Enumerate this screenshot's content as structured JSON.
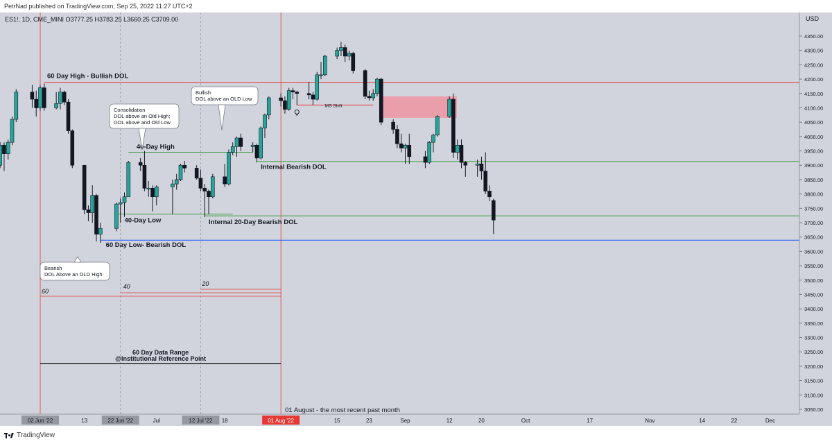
{
  "header": {
    "published": "PetrNad published on TradingView.com, Sep 25, 2022 11:27 UTC+2"
  },
  "footer": {
    "brand": "TradingView"
  },
  "chart_data": {
    "type": "candlestick",
    "symbol_line": "ES1!, 1D, CME_MINI  O3777.25  H3783.25  L3660.25  C3709.00",
    "currency": "USD",
    "ylim": [
      3020,
      4380
    ],
    "y_ticks": [
      3050,
      3100,
      3150,
      3200,
      3250,
      3300,
      3350,
      3400,
      3450,
      3500,
      3550,
      3600,
      3650,
      3700,
      3750,
      3800,
      3850,
      3900,
      3950,
      4000,
      4050,
      4100,
      4150,
      4200,
      4250,
      4300,
      4350
    ],
    "x_ticks": [
      {
        "label": "02 Jun '22",
        "date": "2022-06-02",
        "highlight": "grey"
      },
      {
        "label": "13",
        "date": "2022-06-13"
      },
      {
        "label": "22 Jun '22",
        "date": "2022-06-22",
        "highlight": "grey"
      },
      {
        "label": "Jul",
        "date": "2022-07-01"
      },
      {
        "label": "12 Jul '22",
        "date": "2022-07-12",
        "highlight": "grey"
      },
      {
        "label": "18",
        "date": "2022-07-18"
      },
      {
        "label": "01 Aug '22",
        "date": "2022-08-01",
        "highlight": "red"
      },
      {
        "label": "15",
        "date": "2022-08-15"
      },
      {
        "label": "23",
        "date": "2022-08-23"
      },
      {
        "label": "Sep",
        "date": "2022-09-01"
      },
      {
        "label": "12",
        "date": "2022-09-12"
      },
      {
        "label": "20",
        "date": "2022-09-20"
      },
      {
        "label": "Oct",
        "date": "2022-10-01"
      },
      {
        "label": "17",
        "date": "2022-10-17"
      },
      {
        "label": "Nov",
        "date": "2022-11-01"
      },
      {
        "label": "14",
        "date": "2022-11-14"
      },
      {
        "label": "22",
        "date": "2022-11-22"
      },
      {
        "label": "Dec",
        "date": "2022-12-01"
      }
    ],
    "candles": [
      [
        "2022-05-12",
        3930,
        3950,
        3860,
        3905
      ],
      [
        "2022-05-13",
        3905,
        4030,
        3900,
        4020
      ],
      [
        "2022-05-16",
        4020,
        4050,
        3995,
        4005
      ],
      [
        "2022-05-17",
        4005,
        4100,
        4000,
        4090
      ],
      [
        "2022-05-18",
        4090,
        4100,
        3920,
        3925
      ],
      [
        "2022-05-19",
        3925,
        3960,
        3860,
        3900
      ],
      [
        "2022-05-20",
        3900,
        3945,
        3810,
        3900
      ],
      [
        "2022-05-23",
        3900,
        3980,
        3890,
        3970
      ],
      [
        "2022-05-24",
        3970,
        3980,
        3880,
        3940
      ],
      [
        "2022-05-25",
        3940,
        3990,
        3920,
        3980
      ],
      [
        "2022-05-26",
        3980,
        4070,
        3970,
        4060
      ],
      [
        "2022-05-27",
        4060,
        4165,
        4050,
        4155
      ],
      [
        "2022-05-31",
        4155,
        4180,
        4100,
        4130
      ],
      [
        "2022-06-01",
        4130,
        4160,
        4070,
        4100
      ],
      [
        "2022-06-02",
        4100,
        4180,
        4090,
        4170
      ],
      [
        "2022-06-03",
        4170,
        4185,
        4090,
        4100
      ],
      [
        "2022-06-06",
        4100,
        4155,
        4095,
        4115
      ],
      [
        "2022-06-07",
        4115,
        4170,
        4095,
        4155
      ],
      [
        "2022-06-08",
        4155,
        4160,
        4110,
        4120
      ],
      [
        "2022-06-09",
        4120,
        4130,
        4010,
        4020
      ],
      [
        "2022-06-10",
        4020,
        4025,
        3890,
        3900
      ],
      [
        "2022-06-13",
        3900,
        3900,
        3730,
        3745
      ],
      [
        "2022-06-14",
        3745,
        3760,
        3705,
        3735
      ],
      [
        "2022-06-15",
        3735,
        3830,
        3700,
        3795
      ],
      [
        "2022-06-16",
        3795,
        3800,
        3635,
        3660
      ],
      [
        "2022-06-17",
        3660,
        3700,
        3630,
        3680
      ],
      [
        "2022-06-21",
        3680,
        3770,
        3670,
        3765
      ],
      [
        "2022-06-22",
        3765,
        3785,
        3700,
        3770
      ],
      [
        "2022-06-23",
        3770,
        3805,
        3720,
        3790
      ],
      [
        "2022-06-24",
        3790,
        3915,
        3790,
        3910
      ],
      [
        "2022-06-27",
        3910,
        3925,
        3880,
        3900
      ],
      [
        "2022-06-28",
        3900,
        3950,
        3810,
        3820
      ],
      [
        "2022-06-29",
        3820,
        3845,
        3790,
        3820
      ],
      [
        "2022-06-30",
        3820,
        3830,
        3740,
        3790
      ],
      [
        "2022-07-01",
        3790,
        3830,
        3760,
        3825
      ],
      [
        "2022-07-05",
        3825,
        3850,
        3730,
        3835
      ],
      [
        "2022-07-06",
        3835,
        3870,
        3815,
        3850
      ],
      [
        "2022-07-07",
        3850,
        3905,
        3845,
        3900
      ],
      [
        "2022-07-08",
        3900,
        3915,
        3875,
        3890
      ],
      [
        "2022-07-11",
        3890,
        3900,
        3850,
        3855
      ],
      [
        "2022-07-12",
        3855,
        3885,
        3810,
        3820
      ],
      [
        "2022-07-13",
        3820,
        3835,
        3720,
        3810
      ],
      [
        "2022-07-14",
        3810,
        3815,
        3730,
        3790
      ],
      [
        "2022-07-15",
        3790,
        3870,
        3785,
        3860
      ],
      [
        "2022-07-18",
        3860,
        3905,
        3825,
        3835
      ],
      [
        "2022-07-19",
        3835,
        3955,
        3830,
        3945
      ],
      [
        "2022-07-20",
        3945,
        3980,
        3935,
        3965
      ],
      [
        "2022-07-21",
        3965,
        4000,
        3930,
        3995
      ],
      [
        "2022-07-22",
        3995,
        4010,
        3950,
        3965
      ],
      [
        "2022-07-25",
        3965,
        3980,
        3945,
        3970
      ],
      [
        "2022-07-26",
        3970,
        3975,
        3910,
        3925
      ],
      [
        "2022-07-27",
        3925,
        4035,
        3920,
        4030
      ],
      [
        "2022-07-28",
        4030,
        4080,
        3995,
        4075
      ],
      [
        "2022-07-29",
        4075,
        4140,
        4060,
        4135
      ],
      [
        "2022-08-01",
        4135,
        4150,
        4105,
        4125
      ],
      [
        "2022-08-02",
        4125,
        4140,
        4080,
        4095
      ],
      [
        "2022-08-03",
        4095,
        4170,
        4090,
        4160
      ],
      [
        "2022-08-04",
        4160,
        4170,
        4130,
        4155
      ],
      [
        "2022-08-05",
        4155,
        4160,
        4110,
        4150
      ],
      [
        "2022-08-08",
        4150,
        4190,
        4130,
        4145
      ],
      [
        "2022-08-09",
        4145,
        4155,
        4110,
        4130
      ],
      [
        "2022-08-10",
        4130,
        4225,
        4125,
        4215
      ],
      [
        "2022-08-11",
        4215,
        4260,
        4200,
        4215
      ],
      [
        "2022-08-12",
        4215,
        4285,
        4210,
        4280
      ],
      [
        "2022-08-15",
        4280,
        4310,
        4270,
        4300
      ],
      [
        "2022-08-16",
        4300,
        4330,
        4280,
        4310
      ],
      [
        "2022-08-17",
        4310,
        4320,
        4260,
        4280
      ],
      [
        "2022-08-18",
        4280,
        4300,
        4265,
        4290
      ],
      [
        "2022-08-19",
        4290,
        4295,
        4220,
        4230
      ],
      [
        "2022-08-22",
        4230,
        4235,
        4130,
        4140
      ],
      [
        "2022-08-23",
        4140,
        4160,
        4125,
        4135
      ],
      [
        "2022-08-24",
        4135,
        4165,
        4125,
        4150
      ],
      [
        "2022-08-25",
        4150,
        4205,
        4140,
        4200
      ],
      [
        "2022-08-26",
        4200,
        4205,
        4040,
        4050
      ],
      [
        "2022-08-29",
        4050,
        4060,
        4010,
        4025
      ],
      [
        "2022-08-30",
        4025,
        4040,
        3960,
        3975
      ],
      [
        "2022-08-31",
        3975,
        4010,
        3945,
        3960
      ],
      [
        "2022-09-01",
        3960,
        3975,
        3905,
        3970
      ],
      [
        "2022-09-02",
        3970,
        4010,
        3905,
        3930
      ],
      [
        "2022-09-06",
        3930,
        3950,
        3890,
        3910
      ],
      [
        "2022-09-07",
        3910,
        3985,
        3905,
        3980
      ],
      [
        "2022-09-08",
        3980,
        4010,
        3945,
        4005
      ],
      [
        "2022-09-09",
        4005,
        4075,
        4000,
        4070
      ],
      [
        "2022-09-12",
        4070,
        4140,
        4065,
        4130
      ],
      [
        "2022-09-13",
        4130,
        4150,
        3925,
        3945
      ],
      [
        "2022-09-14",
        3945,
        3990,
        3920,
        3970
      ],
      [
        "2022-09-15",
        3970,
        3990,
        3890,
        3910
      ],
      [
        "2022-09-16",
        3910,
        3915,
        3860,
        3900
      ],
      [
        "2022-09-19",
        3900,
        3920,
        3860,
        3905
      ],
      [
        "2022-09-20",
        3905,
        3930,
        3850,
        3880
      ],
      [
        "2022-09-21",
        3880,
        3945,
        3800,
        3810
      ],
      [
        "2022-09-22",
        3810,
        3830,
        3775,
        3790
      ],
      [
        "2022-09-23",
        3777.25,
        3783.25,
        3660.25,
        3709
      ]
    ],
    "price_levels": [
      {
        "price": 4189.0,
        "color": "#e53935",
        "label": "4189.00"
      },
      {
        "price": 3913.25,
        "color": "#43a047",
        "label": "3913.25"
      },
      {
        "price": 3723.75,
        "color": "#43a047",
        "label": "3723.75"
      },
      {
        "price": 3639.0,
        "color": "#1e5cff",
        "label": "3639.00"
      }
    ],
    "last_price": {
      "price": 3709.0,
      "label": "3709.00",
      "color": "#131722"
    },
    "annotations": {
      "label_60_high": "60 Day High - Bullish DOL",
      "label_40_high": "40-Day High",
      "label_internal_bearish": "Internal Bearish DOL",
      "label_40_low": "40-Day Low",
      "label_internal_20": "Internal 20-Day Bearish DOL",
      "label_60_low": "60 Day Low- Bearish DOL",
      "label_ms_shift": "MS Shift",
      "label_60": "60",
      "label_40": "40",
      "label_20": "20",
      "range_title_1": "60 Day Data Range",
      "range_title_2": "@Institutional Reference Point",
      "aug_label": "01 August - the most recent past month",
      "callout_consolidation": [
        "Consolidation",
        "DOL above an Old High;",
        "DOL above and Old Low"
      ],
      "callout_bullish": [
        "Bullish",
        "DOL above an OLD Low"
      ],
      "callout_bearish": [
        "Bearish",
        "DOL Above an OLD High"
      ]
    },
    "colors": {
      "bull": "#26a69a",
      "bear": "#131722",
      "green_line": "#43a047",
      "red_line": "#e53935",
      "blue_line": "#1e5cff",
      "zone": "#f28c9a"
    }
  }
}
